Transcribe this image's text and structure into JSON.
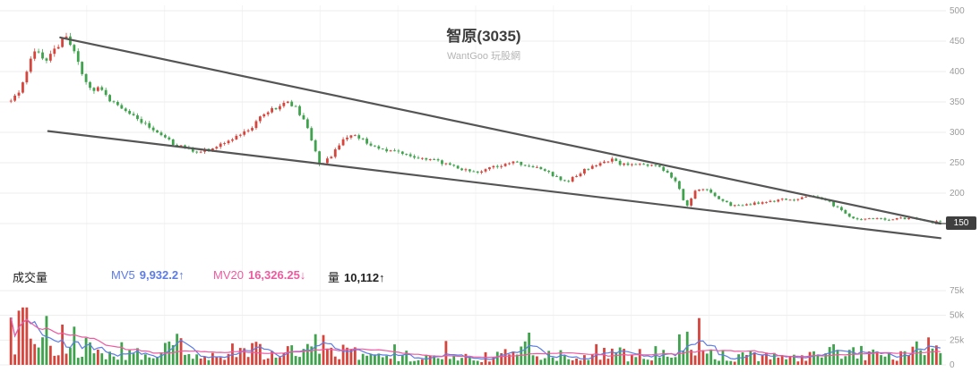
{
  "header": {
    "title": "智原(3035)",
    "subtitle": "WantGoo 玩股網"
  },
  "legend": {
    "volume_title": "成交量",
    "mv5_label": "MV5",
    "mv5_value": "9,932.2↑",
    "mv20_label": "MV20",
    "mv20_value": "16,326.25↓",
    "vol_label": "量",
    "vol_value": "10,112↑"
  },
  "last_price": "150",
  "colors": {
    "up": "#d6443c",
    "down": "#3fa34d",
    "mv5": "#5c7ce6",
    "mv20": "#ee5aa0",
    "trend": "#555555",
    "grid": "#ededed",
    "axis_text": "#9b9b9b"
  },
  "chart_data": {
    "type": "candlestick",
    "title": "智原(3035)",
    "subtitle": "WantGoo 玩股網",
    "panes": [
      "price",
      "volume"
    ],
    "legend_position": "above-volume-pane",
    "grid": true,
    "candle_count": 236,
    "price_axis": {
      "side": "right",
      "range": [
        150,
        500
      ],
      "ticks": [
        500,
        450,
        400,
        350,
        300,
        250,
        200,
        150
      ]
    },
    "volume_axis": {
      "side": "right",
      "range_k": [
        0,
        75
      ],
      "ticks": [
        {
          "v": 75,
          "label": "75k"
        },
        {
          "v": 50,
          "label": "50k"
        },
        {
          "v": 25,
          "label": "25k"
        },
        {
          "v": 0,
          "label": "0"
        }
      ]
    },
    "indicators": {
      "mv5": 9932.2,
      "mv5_direction": "up",
      "mv20": 16326.25,
      "mv20_direction": "down",
      "volume": 10112,
      "volume_direction": "up"
    },
    "last_price": 150,
    "trendlines": [
      {
        "x1": 0.055,
        "p1": 456,
        "x2": 0.998,
        "p2": 150
      },
      {
        "x1": 0.042,
        "p1": 302,
        "x2": 0.998,
        "p2": 126
      }
    ],
    "price_path": [
      [
        0.0,
        350
      ],
      [
        0.01,
        368
      ],
      [
        0.025,
        435
      ],
      [
        0.04,
        420
      ],
      [
        0.06,
        462
      ],
      [
        0.075,
        405
      ],
      [
        0.087,
        367
      ],
      [
        0.096,
        373
      ],
      [
        0.108,
        352
      ],
      [
        0.12,
        338
      ],
      [
        0.135,
        325
      ],
      [
        0.149,
        308
      ],
      [
        0.168,
        287
      ],
      [
        0.183,
        276
      ],
      [
        0.197,
        268
      ],
      [
        0.212,
        272
      ],
      [
        0.226,
        282
      ],
      [
        0.24,
        291
      ],
      [
        0.255,
        302
      ],
      [
        0.269,
        325
      ],
      [
        0.284,
        340
      ],
      [
        0.296,
        349
      ],
      [
        0.308,
        338
      ],
      [
        0.319,
        308
      ],
      [
        0.332,
        246
      ],
      [
        0.344,
        260
      ],
      [
        0.358,
        287
      ],
      [
        0.37,
        295
      ],
      [
        0.385,
        282
      ],
      [
        0.399,
        272
      ],
      [
        0.413,
        268
      ],
      [
        0.428,
        262
      ],
      [
        0.442,
        257
      ],
      [
        0.457,
        254
      ],
      [
        0.471,
        246
      ],
      [
        0.486,
        238
      ],
      [
        0.5,
        235
      ],
      [
        0.514,
        241
      ],
      [
        0.529,
        246
      ],
      [
        0.543,
        250
      ],
      [
        0.558,
        244
      ],
      [
        0.572,
        238
      ],
      [
        0.587,
        226
      ],
      [
        0.598,
        217
      ],
      [
        0.611,
        232
      ],
      [
        0.623,
        244
      ],
      [
        0.635,
        250
      ],
      [
        0.646,
        255
      ],
      [
        0.659,
        246
      ],
      [
        0.671,
        250
      ],
      [
        0.683,
        244
      ],
      [
        0.694,
        246
      ],
      [
        0.707,
        235
      ],
      [
        0.718,
        213
      ],
      [
        0.726,
        174
      ],
      [
        0.736,
        202
      ],
      [
        0.748,
        208
      ],
      [
        0.76,
        190
      ],
      [
        0.774,
        181
      ],
      [
        0.788,
        179
      ],
      [
        0.803,
        184
      ],
      [
        0.817,
        187
      ],
      [
        0.832,
        190
      ],
      [
        0.846,
        191
      ],
      [
        0.861,
        194
      ],
      [
        0.875,
        190
      ],
      [
        0.889,
        176
      ],
      [
        0.902,
        161
      ],
      [
        0.913,
        156
      ],
      [
        0.928,
        159
      ],
      [
        0.942,
        156
      ],
      [
        0.957,
        158
      ],
      [
        0.971,
        159
      ],
      [
        0.986,
        153
      ],
      [
        1.0,
        152
      ]
    ],
    "volume_path_k": [
      [
        0.005,
        28
      ],
      [
        0.014,
        40
      ],
      [
        0.024,
        50
      ],
      [
        0.034,
        32
      ],
      [
        0.043,
        24
      ],
      [
        0.053,
        26
      ],
      [
        0.065,
        22
      ],
      [
        0.077,
        18
      ],
      [
        0.096,
        16
      ],
      [
        0.115,
        13
      ],
      [
        0.135,
        11
      ],
      [
        0.154,
        13
      ],
      [
        0.175,
        20
      ],
      [
        0.192,
        11
      ],
      [
        0.212,
        9
      ],
      [
        0.229,
        14
      ],
      [
        0.25,
        10
      ],
      [
        0.269,
        14
      ],
      [
        0.29,
        17
      ],
      [
        0.308,
        12
      ],
      [
        0.329,
        20
      ],
      [
        0.346,
        13
      ],
      [
        0.367,
        15
      ],
      [
        0.385,
        10
      ],
      [
        0.404,
        9
      ],
      [
        0.423,
        10
      ],
      [
        0.442,
        8
      ],
      [
        0.462,
        7
      ],
      [
        0.481,
        8
      ],
      [
        0.5,
        7
      ],
      [
        0.519,
        8
      ],
      [
        0.54,
        10
      ],
      [
        0.558,
        22
      ],
      [
        0.577,
        10
      ],
      [
        0.596,
        12
      ],
      [
        0.615,
        10
      ],
      [
        0.635,
        14
      ],
      [
        0.654,
        10
      ],
      [
        0.673,
        8
      ],
      [
        0.692,
        10
      ],
      [
        0.71,
        14
      ],
      [
        0.726,
        19
      ],
      [
        0.745,
        28
      ],
      [
        0.76,
        12
      ],
      [
        0.779,
        8
      ],
      [
        0.798,
        10
      ],
      [
        0.817,
        8
      ],
      [
        0.837,
        7
      ],
      [
        0.856,
        8
      ],
      [
        0.875,
        10
      ],
      [
        0.894,
        14
      ],
      [
        0.913,
        11
      ],
      [
        0.933,
        8
      ],
      [
        0.952,
        10
      ],
      [
        0.971,
        12
      ],
      [
        0.988,
        16
      ],
      [
        1.0,
        10
      ]
    ]
  }
}
